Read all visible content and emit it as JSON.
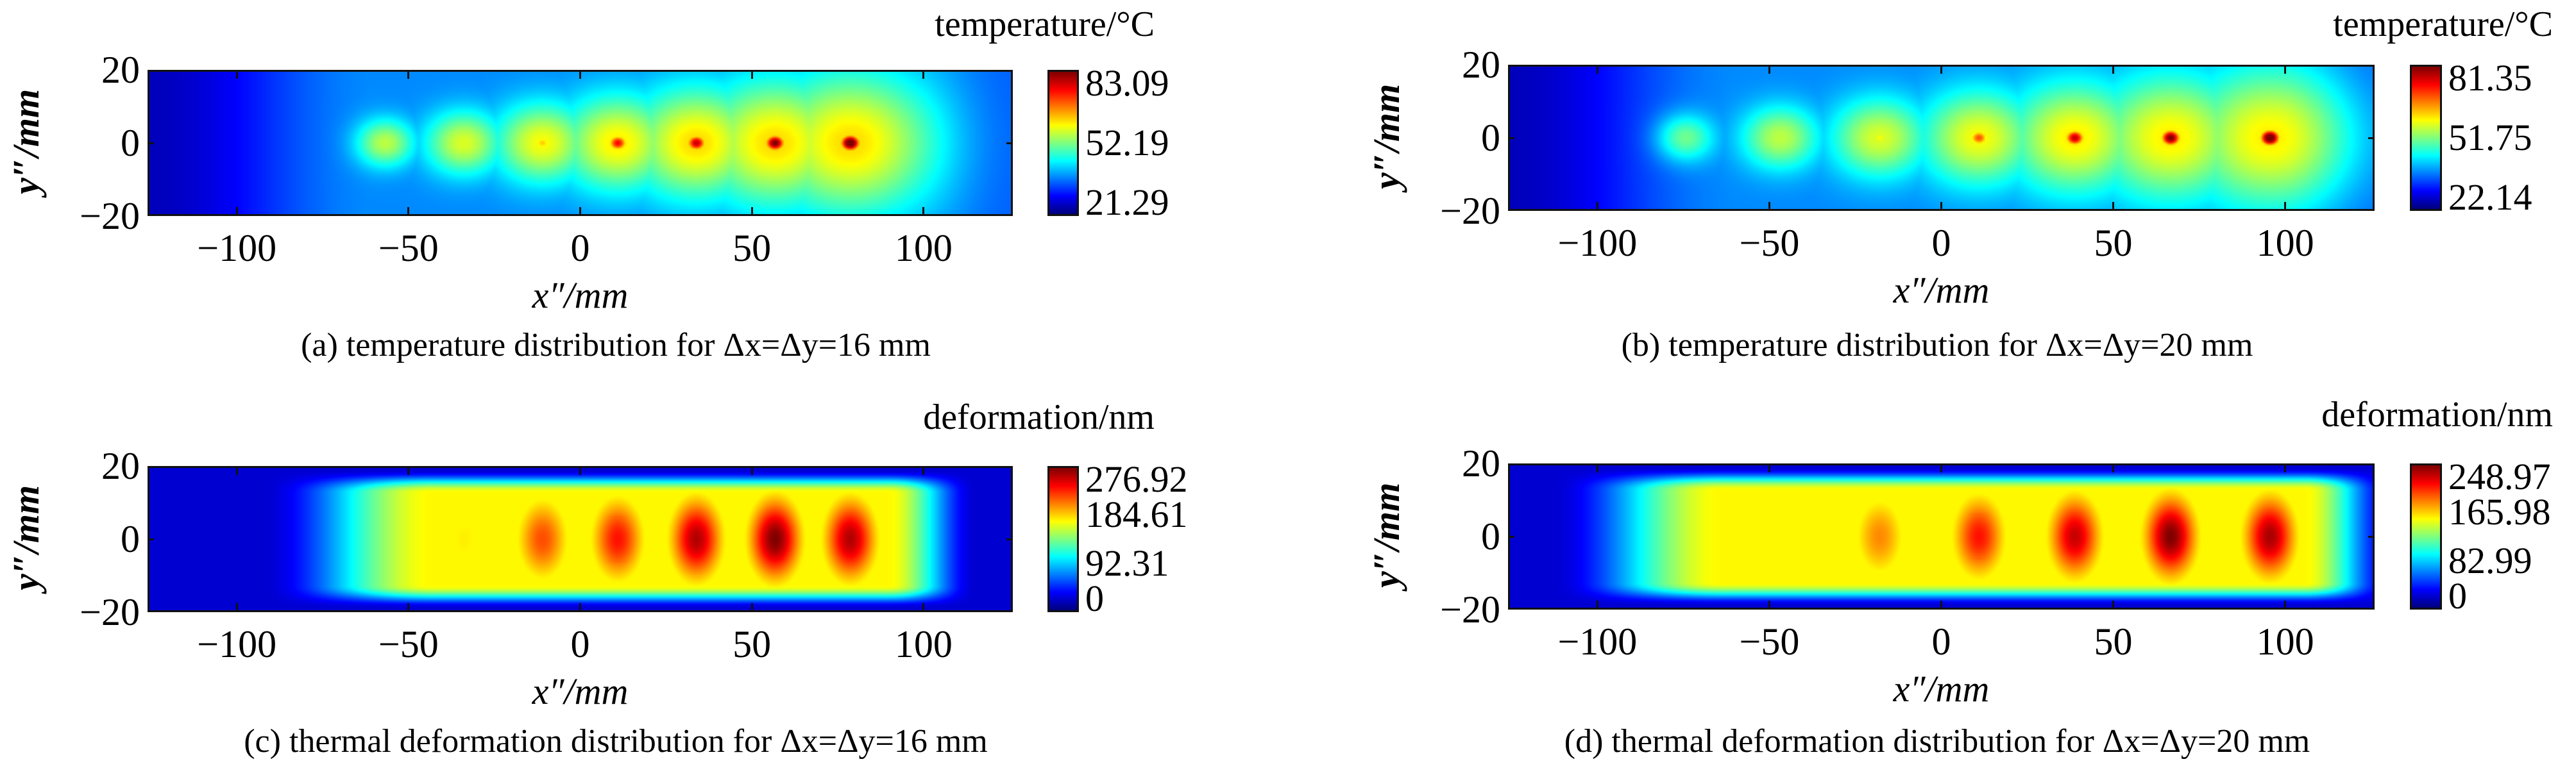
{
  "chart_data": [
    {
      "id": "a",
      "type": "heatmap",
      "quantity": "temperature",
      "title": "(a) temperature distribution for Δx=Δy=16 mm",
      "xlabel": "x″/mm",
      "ylabel": "y″/mm",
      "xlim": [
        -126,
        126
      ],
      "ylim": [
        -20,
        20
      ],
      "xticks": [
        "−100",
        "−50",
        "0",
        "50",
        "100"
      ],
      "xtick_values": [
        -100,
        -50,
        0,
        50,
        100
      ],
      "yticks": [
        "20",
        "0",
        "−20"
      ],
      "ytick_values": [
        20,
        0,
        -20
      ],
      "colorbar_title": "temperature/°C",
      "colorbar_ticks": [
        "83.09",
        "52.19",
        "21.29"
      ],
      "colorbar_range": [
        21.29,
        83.09
      ],
      "colormap": "jet",
      "model": "temp",
      "spots_x_mm": [
        -57,
        -34,
        -11,
        11,
        34,
        57,
        79
      ],
      "spots_peak_norm": [
        0.42,
        0.52,
        0.6,
        0.8,
        0.86,
        0.94,
        1.0
      ],
      "halo_norm": [
        0.3,
        0.33,
        0.36,
        0.38,
        0.4,
        0.4,
        0.4
      ]
    },
    {
      "id": "b",
      "type": "heatmap",
      "quantity": "temperature",
      "title": "(b) temperature distribution for Δx=Δy=20 mm",
      "xlabel": "x″/mm",
      "ylabel": "y″/mm",
      "xlim": [
        -126,
        126
      ],
      "ylim": [
        -20,
        20
      ],
      "xticks": [
        "−100",
        "−50",
        "0",
        "50",
        "100"
      ],
      "xtick_values": [
        -100,
        -50,
        0,
        50,
        100
      ],
      "yticks": [
        "20",
        "0",
        "−20"
      ],
      "ytick_values": [
        20,
        0,
        -20
      ],
      "colorbar_title": "temperature/°C",
      "colorbar_ticks": [
        "81.35",
        "51.75",
        "22.14"
      ],
      "colorbar_range": [
        22.14,
        81.35
      ],
      "colormap": "jet",
      "model": "temp",
      "spots_x_mm": [
        -75,
        -47,
        -18,
        11,
        39,
        67,
        96
      ],
      "spots_peak_norm": [
        0.38,
        0.45,
        0.55,
        0.72,
        0.86,
        0.94,
        1.0
      ],
      "halo_norm": [
        0.25,
        0.3,
        0.33,
        0.36,
        0.38,
        0.38,
        0.38
      ]
    },
    {
      "id": "c",
      "type": "heatmap",
      "quantity": "thermal deformation",
      "title": "(c) thermal deformation distribution for Δx=Δy=16 mm",
      "xlabel": "x″/mm",
      "ylabel": "y″/mm",
      "xlim": [
        -126,
        126
      ],
      "ylim": [
        -20,
        20
      ],
      "xticks": [
        "−100",
        "−50",
        "0",
        "50",
        "100"
      ],
      "xtick_values": [
        -100,
        -50,
        0,
        50,
        100
      ],
      "yticks": [
        "20",
        "0",
        "−20"
      ],
      "ytick_values": [
        20,
        0,
        -20
      ],
      "colorbar_title": "deformation/nm",
      "colorbar_ticks": [
        "276.92",
        "184.61",
        "92.31",
        "0"
      ],
      "colorbar_range": [
        0,
        276.92
      ],
      "colormap": "jet",
      "model": "deform",
      "plateau_x_mm": [
        -85,
        112
      ],
      "spots_x_mm": [
        -34,
        -11,
        11,
        34,
        57,
        79
      ],
      "spots_peak_norm": [
        0.64,
        0.8,
        0.86,
        0.95,
        1.0,
        0.95
      ]
    },
    {
      "id": "d",
      "type": "heatmap",
      "quantity": "thermal deformation",
      "title": "(d) thermal deformation distribution for Δx=Δy=20 mm",
      "xlabel": "x″/mm",
      "ylabel": "y″/mm",
      "xlim": [
        -126,
        126
      ],
      "ylim": [
        -20,
        20
      ],
      "xticks": [
        "−100",
        "−50",
        "0",
        "50",
        "100"
      ],
      "xtick_values": [
        -100,
        -50,
        0,
        50,
        100
      ],
      "yticks": [
        "20",
        "0",
        "−20"
      ],
      "ytick_values": [
        20,
        0,
        -20
      ],
      "colorbar_title": "deformation/nm",
      "colorbar_ticks": [
        "248.97",
        "165.98",
        "82.99",
        "0"
      ],
      "colorbar_range": [
        0,
        248.97
      ],
      "colormap": "jet",
      "model": "deform",
      "plateau_x_mm": [
        -106,
        128
      ],
      "spots_x_mm": [
        -75,
        -47,
        -18,
        11,
        39,
        67,
        96
      ],
      "spots_peak_norm": [
        0.56,
        0.62,
        0.74,
        0.86,
        0.93,
        1.0,
        0.96
      ]
    }
  ]
}
